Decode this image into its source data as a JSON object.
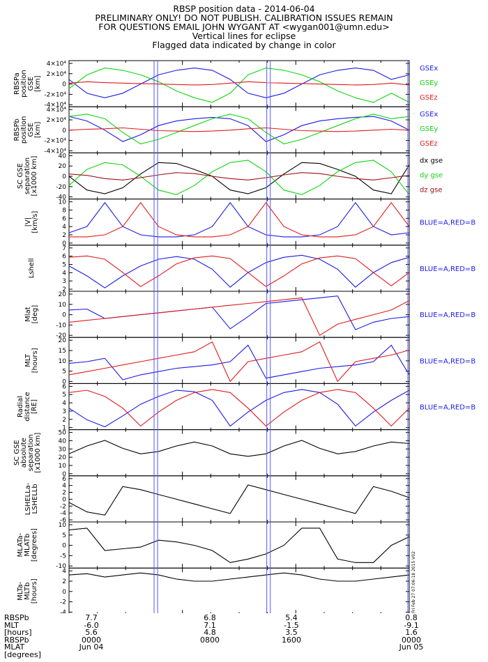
{
  "header": {
    "lines": [
      "RBSP position data - 2014-06-04",
      "PRELIMINARY ONLY! DO NOT PUBLISH. CALIBRATION ISSUES REMAIN",
      "FOR QUESTIONS EMAIL JOHN WYGANT AT <wygan001@umn.edu>",
      "Vertical lines for eclipse",
      "Flagged data indicated by change in color"
    ]
  },
  "colors": {
    "blue": "#1a1ae6",
    "green": "#11d411",
    "red": "#e01a1a",
    "black": "#000000",
    "darkred": "#a01010",
    "eclipse": "#5555ff"
  },
  "chart_data": [
    {
      "type": "line",
      "id": "rbspa-gse",
      "ylabel": [
        "RBSPa",
        "position",
        "GSE",
        "[km]"
      ],
      "yticks": [
        "4×10⁴",
        "2×10⁴",
        "0",
        "-2×10⁴",
        "-4×10⁴"
      ],
      "ylim": [
        -45000,
        45000
      ],
      "legend": [
        "GSEx",
        "GSEy",
        "GSEz"
      ],
      "series": [
        {
          "name": "GSEx",
          "color": "blue",
          "values": [
            10000,
            -20000,
            -30000,
            -20000,
            0,
            20000,
            30000,
            35000,
            30000,
            10000,
            -20000,
            -30000,
            -20000,
            0,
            20000,
            30000,
            35000,
            30000,
            10000,
            20000
          ]
        },
        {
          "name": "GSEy",
          "color": "green",
          "values": [
            -10000,
            20000,
            35000,
            30000,
            20000,
            5000,
            -15000,
            -30000,
            -40000,
            -20000,
            20000,
            35000,
            30000,
            20000,
            5000,
            -15000,
            -30000,
            -40000,
            -20000,
            -40000
          ]
        },
        {
          "name": "GSEz",
          "color": "red",
          "values": [
            2000,
            5000,
            3000,
            2000,
            1000,
            0,
            -1000,
            -2000,
            -1000,
            2000,
            5000,
            3000,
            2000,
            1000,
            0,
            -1000,
            -2000,
            -1000,
            2000,
            -2000
          ]
        }
      ]
    },
    {
      "type": "line",
      "id": "rbspb-gse",
      "ylabel": [
        "RBSPb",
        "position",
        "GSE",
        "[km]"
      ],
      "yticks": [
        "4×10⁴",
        "2×10⁴",
        "0",
        "-2×10⁴",
        "-4×10⁴"
      ],
      "ylim": [
        -45000,
        45000
      ],
      "legend": [
        "GSEx",
        "GSEy",
        "GSEz"
      ],
      "series": [
        {
          "name": "GSEx",
          "color": "blue",
          "values": [
            30000,
            20000,
            0,
            -25000,
            -10000,
            10000,
            20000,
            25000,
            28000,
            25000,
            10000,
            -25000,
            -10000,
            10000,
            20000,
            25000,
            28000,
            30000,
            20000,
            0
          ]
        },
        {
          "name": "GSEy",
          "color": "green",
          "values": [
            30000,
            35000,
            25000,
            -5000,
            -30000,
            -20000,
            -5000,
            10000,
            25000,
            35000,
            25000,
            -5000,
            -30000,
            -20000,
            -5000,
            10000,
            25000,
            35000,
            25000,
            30000
          ]
        },
        {
          "name": "GSEz",
          "color": "red",
          "values": [
            0,
            2000,
            3000,
            5000,
            2000,
            -1000,
            -2000,
            -3000,
            -2000,
            0,
            3000,
            5000,
            2000,
            -1000,
            -2000,
            -3000,
            -2000,
            0,
            2000,
            0
          ]
        }
      ]
    },
    {
      "type": "line",
      "id": "sc-gse-separation",
      "ylabel": [
        "SC GSE",
        "separation",
        "[x1000 km]"
      ],
      "yticks": [
        "40",
        "20",
        "0",
        "-20",
        "-40"
      ],
      "ylim": [
        -45,
        45
      ],
      "legend": [
        "dx gse",
        "dy gse",
        "dz gse"
      ],
      "series": [
        {
          "name": "dx gse",
          "color": "black",
          "values": [
            0,
            -30,
            -38,
            -25,
            5,
            30,
            28,
            15,
            0,
            -30,
            -38,
            -25,
            5,
            30,
            28,
            15,
            0,
            -30,
            -38,
            25
          ]
        },
        {
          "name": "dy gse",
          "color": "green",
          "values": [
            -20,
            15,
            30,
            25,
            0,
            -30,
            -40,
            -20,
            10,
            30,
            35,
            10,
            -30,
            -40,
            -20,
            10,
            30,
            35,
            10,
            -40
          ]
        },
        {
          "name": "dz gse",
          "color": "darkred",
          "values": [
            5,
            2,
            -5,
            -8,
            -3,
            3,
            8,
            6,
            0,
            -5,
            -8,
            -3,
            3,
            8,
            6,
            0,
            -5,
            -8,
            -3,
            2
          ]
        }
      ]
    },
    {
      "type": "line",
      "id": "velocity",
      "ylabel": [
        "|V|",
        "[km/s]"
      ],
      "yticks": [
        "10",
        "8",
        "6",
        "4",
        "2",
        "0"
      ],
      "ylim": [
        0,
        10
      ],
      "legend": [
        "BLUE=A,RED=B"
      ],
      "series": [
        {
          "name": "A",
          "color": "blue",
          "values": [
            2.5,
            4,
            9.8,
            4,
            2,
            1.5,
            1.5,
            2,
            4,
            9.8,
            4,
            2,
            1.5,
            1.5,
            2,
            4,
            9.8,
            4,
            2,
            2.5
          ]
        },
        {
          "name": "B",
          "color": "red",
          "values": [
            1.5,
            1.5,
            2,
            4,
            9.8,
            4,
            2,
            1.5,
            1.5,
            2,
            4,
            9.8,
            4,
            2,
            1.5,
            1.5,
            2,
            4,
            9.8,
            4
          ]
        }
      ]
    },
    {
      "type": "line",
      "id": "lshell",
      "ylabel": [
        "Lshell"
      ],
      "yticks": [
        "7",
        "6",
        "5",
        "4",
        "3",
        "2"
      ],
      "ylim": [
        1,
        7.2
      ],
      "legend": [
        "BLUE=A,RED=B"
      ],
      "series": [
        {
          "name": "A",
          "color": "blue",
          "values": [
            4.5,
            3,
            1.2,
            3,
            4.5,
            5.5,
            5.9,
            5.5,
            4,
            1.3,
            3.5,
            5,
            5.8,
            6.1,
            5.5,
            4,
            1.3,
            3.5,
            5,
            5.8
          ]
        },
        {
          "name": "B",
          "color": "red",
          "values": [
            5.8,
            6,
            5.5,
            3.5,
            1.4,
            3,
            4.8,
            5.7,
            6,
            5.6,
            3.5,
            1.4,
            3,
            4.8,
            5.7,
            6,
            5.6,
            3.5,
            1.5,
            3.5
          ]
        }
      ]
    },
    {
      "type": "line",
      "id": "mlat",
      "ylabel": [
        "Mlat",
        "[deg]"
      ],
      "yticks": [
        "20",
        "10",
        "0",
        "-10",
        "-20"
      ],
      "ylim": [
        -22,
        22
      ],
      "legend": [
        "BLUE=A,RED=B"
      ],
      "series": [
        {
          "name": "A",
          "color": "blue",
          "values": [
            5,
            6,
            -4,
            -2,
            0,
            2,
            4,
            6,
            8,
            -15,
            -2,
            12,
            14,
            16,
            18,
            20,
            -16,
            -8,
            -4,
            -2
          ]
        },
        {
          "name": "B",
          "color": "red",
          "values": [
            -8,
            -6,
            -4,
            -2,
            0,
            2,
            4,
            6,
            8,
            10,
            12,
            14,
            16,
            18,
            -22,
            -10,
            -5,
            0,
            5,
            15
          ]
        }
      ]
    },
    {
      "type": "line",
      "id": "mlt",
      "ylabel": [
        "MLT",
        "[hours]"
      ],
      "yticks": [
        "20",
        "15",
        "10",
        "5",
        "0"
      ],
      "ylim": [
        0,
        25
      ],
      "legend": [
        "BLUE=A,RED=B"
      ],
      "series": [
        {
          "name": "A",
          "color": "blue",
          "values": [
            11,
            12,
            14,
            1,
            4,
            6,
            8,
            9,
            10,
            12,
            22,
            2,
            4,
            6,
            8,
            9,
            10,
            12,
            22,
            4
          ]
        },
        {
          "name": "B",
          "color": "red",
          "values": [
            4,
            6,
            8,
            10,
            12,
            14,
            16,
            18,
            24,
            0,
            12,
            14,
            16,
            18,
            24,
            0,
            12,
            14,
            16,
            19
          ]
        }
      ]
    },
    {
      "type": "line",
      "id": "radial-distance",
      "ylabel": [
        "Radial",
        "distance",
        "[RE]"
      ],
      "yticks": [
        "6",
        "5",
        "4",
        "3",
        "2",
        "1"
      ],
      "ylim": [
        1,
        6.3
      ],
      "legend": [
        "BLUE=A,RED=B"
      ],
      "series": [
        {
          "name": "A",
          "color": "blue",
          "values": [
            3.5,
            2,
            1.1,
            2.5,
            4,
            5,
            5.8,
            5.6,
            4.5,
            1.2,
            3,
            4.5,
            5.5,
            5.9,
            5.5,
            4,
            1.2,
            3,
            4.5,
            5.8
          ]
        },
        {
          "name": "B",
          "color": "red",
          "values": [
            5.5,
            5.8,
            5,
            3.5,
            1.2,
            3,
            4.5,
            5.5,
            5.9,
            5.5,
            3.5,
            1.2,
            3,
            4.5,
            5.5,
            5.9,
            5.5,
            3.5,
            1.2,
            3.5
          ]
        }
      ]
    },
    {
      "type": "line",
      "id": "sc-gse-absolute-separation",
      "ylabel": [
        "SC GSE",
        "absolute",
        "separation",
        "[x1000 km]"
      ],
      "yticks": [
        "50",
        "40",
        "30",
        "20",
        "10",
        "0"
      ],
      "ylim": [
        0,
        52
      ],
      "legend": [],
      "series": [
        {
          "name": "",
          "color": "black",
          "values": [
            25,
            35,
            42,
            32,
            25,
            28,
            35,
            40,
            35,
            25,
            22,
            25,
            35,
            42,
            32,
            25,
            28,
            35,
            40,
            38
          ]
        }
      ]
    },
    {
      "type": "line",
      "id": "lshell-difference",
      "ylabel": [
        "LSHELLa-",
        "LSHELLb"
      ],
      "yticks": [
        "6",
        "4",
        "2",
        "0",
        "-2",
        "-4",
        "-6"
      ],
      "ylim": [
        -6.5,
        6.5
      ],
      "legend": [],
      "series": [
        {
          "name": "",
          "color": "black",
          "values": [
            -1,
            -4,
            -5,
            4,
            3,
            1.5,
            0,
            -1.5,
            -3,
            -4.5,
            4.5,
            3,
            1.5,
            0,
            -1.5,
            -3,
            -4.5,
            4,
            2.5,
            0.5
          ]
        }
      ]
    },
    {
      "type": "line",
      "id": "mlat-difference",
      "ylabel": [
        "MLATa-",
        "MLATb",
        "[degrees]"
      ],
      "yticks": [
        "10",
        "5",
        "0",
        "-5",
        "-10"
      ],
      "ylim": [
        -12,
        12
      ],
      "legend": [],
      "series": [
        {
          "name": "",
          "color": "black",
          "values": [
            9,
            10,
            -3,
            -2,
            -1,
            3,
            2,
            0,
            -3,
            -10,
            -8,
            -5,
            0,
            10,
            10,
            -8,
            -10,
            -10,
            0,
            5
          ]
        }
      ]
    },
    {
      "type": "line",
      "id": "mlt-difference",
      "ylabel": [
        "MLTa-",
        "MLTb",
        "[hours]"
      ],
      "yticks": [
        "4",
        "2",
        "0",
        "-2",
        "-4"
      ],
      "ylim": [
        -5,
        5
      ],
      "legend": [],
      "series": [
        {
          "name": "",
          "color": "black",
          "values": [
            4,
            4.3,
            3.5,
            4,
            4.5,
            4,
            3,
            2.5,
            2.5,
            3,
            3.5,
            4,
            4.5,
            4,
            3,
            2.5,
            2.5,
            3,
            3.5,
            4
          ]
        }
      ]
    }
  ],
  "eclipse_lines_hours": [
    6.0,
    6.25,
    13.95,
    14.2,
    23.9
  ],
  "footer": {
    "labels": [
      "RBSPb",
      "MLT",
      "[hours]",
      "RBSPb",
      "MLAT",
      "[degrees]"
    ],
    "columns": [
      [
        "7.7",
        "-6.0",
        "5.6",
        "0000",
        "Jun 04"
      ],
      [
        "6.8",
        "7.1",
        "4.8",
        "0800",
        ""
      ],
      [
        "5.4",
        "-1.5",
        "3.5",
        "1600",
        ""
      ],
      [
        "0.8",
        "-9.1",
        "1.6",
        "0000",
        "Jun 05"
      ]
    ]
  },
  "stamp": "Fri Feb 27 07:06:18 2015 V02"
}
